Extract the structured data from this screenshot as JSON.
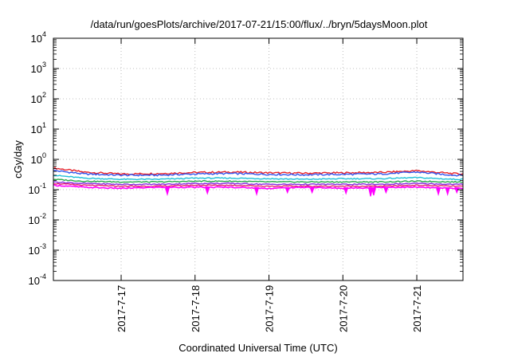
{
  "chart_data": {
    "type": "line",
    "title": "/data/run/goesPlots/archive/2017-07-21/15:00/flux/../bryn/5daysMoon.plot",
    "xlabel": "Coordinated Universal Time (UTC)",
    "ylabel": "cGy/day",
    "yscale": "log",
    "grid": true,
    "xlim": [
      "2017-07-16 02:00",
      "2017-07-21 15:00"
    ],
    "ylim": [
      0.0001,
      10000
    ],
    "x_ticks": [
      "2017-7-17",
      "2017-7-18",
      "2017-7-19",
      "2017-7-20",
      "2017-7-21"
    ],
    "y_ticks": [
      {
        "base": "10",
        "exp": "4"
      },
      {
        "base": "10",
        "exp": "3"
      },
      {
        "base": "10",
        "exp": "2"
      },
      {
        "base": "10",
        "exp": "1"
      },
      {
        "base": "10",
        "exp": "0"
      },
      {
        "base": "10",
        "exp": "-1"
      },
      {
        "base": "10",
        "exp": "-2"
      },
      {
        "base": "10",
        "exp": "-3"
      },
      {
        "base": "10",
        "exp": "-4"
      }
    ],
    "x": [
      "2017-07-16 02:00",
      "2017-07-16 12:00",
      "2017-07-17 00:00",
      "2017-07-17 12:00",
      "2017-07-18 00:00",
      "2017-07-18 12:00",
      "2017-07-19 00:00",
      "2017-07-19 12:00",
      "2017-07-20 00:00",
      "2017-07-20 12:00",
      "2017-07-21 00:00",
      "2017-07-21 12:00",
      "2017-07-21 15:00"
    ],
    "series": [
      {
        "color": "#e8232a",
        "values": [
          0.52,
          0.38,
          0.33,
          0.34,
          0.37,
          0.38,
          0.36,
          0.35,
          0.36,
          0.37,
          0.42,
          0.34,
          0.33
        ]
      },
      {
        "color": "#3355ee",
        "values": [
          0.43,
          0.33,
          0.3,
          0.3,
          0.33,
          0.34,
          0.32,
          0.31,
          0.32,
          0.33,
          0.38,
          0.3,
          0.3
        ]
      },
      {
        "color": "#20c0d8",
        "values": [
          0.3,
          0.24,
          0.22,
          0.22,
          0.24,
          0.24,
          0.23,
          0.22,
          0.23,
          0.23,
          0.25,
          0.22,
          0.22
        ]
      },
      {
        "color": "#2aa84a",
        "values": [
          0.22,
          0.19,
          0.18,
          0.18,
          0.19,
          0.19,
          0.18,
          0.18,
          0.18,
          0.18,
          0.19,
          0.18,
          0.18
        ]
      },
      {
        "color": "#8a2be2",
        "values": [
          0.18,
          0.16,
          0.15,
          0.15,
          0.16,
          0.16,
          0.15,
          0.15,
          0.15,
          0.15,
          0.16,
          0.15,
          0.15
        ]
      },
      {
        "color": "#e8206f",
        "values": [
          0.16,
          0.14,
          0.13,
          0.13,
          0.14,
          0.14,
          0.13,
          0.13,
          0.13,
          0.13,
          0.14,
          0.13,
          0.13
        ]
      },
      {
        "color": "#ff00ff",
        "values": [
          0.14,
          0.12,
          0.11,
          0.12,
          0.12,
          0.12,
          0.11,
          0.12,
          0.11,
          0.12,
          0.12,
          0.11,
          0.11
        ]
      }
    ],
    "dips": {
      "color": "#ff00ff",
      "x": [
        "2017-07-17 15:00",
        "2017-07-18 04:00",
        "2017-07-18 20:00",
        "2017-07-19 06:00",
        "2017-07-19 14:00",
        "2017-07-20 01:00",
        "2017-07-20 09:00",
        "2017-07-20 10:00",
        "2017-07-20 14:00",
        "2017-07-21 07:00",
        "2017-07-21 10:00",
        "2017-07-21 13:00"
      ],
      "values": [
        0.07,
        0.075,
        0.07,
        0.08,
        0.08,
        0.075,
        0.06,
        0.065,
        0.08,
        0.07,
        0.07,
        0.08
      ]
    }
  }
}
